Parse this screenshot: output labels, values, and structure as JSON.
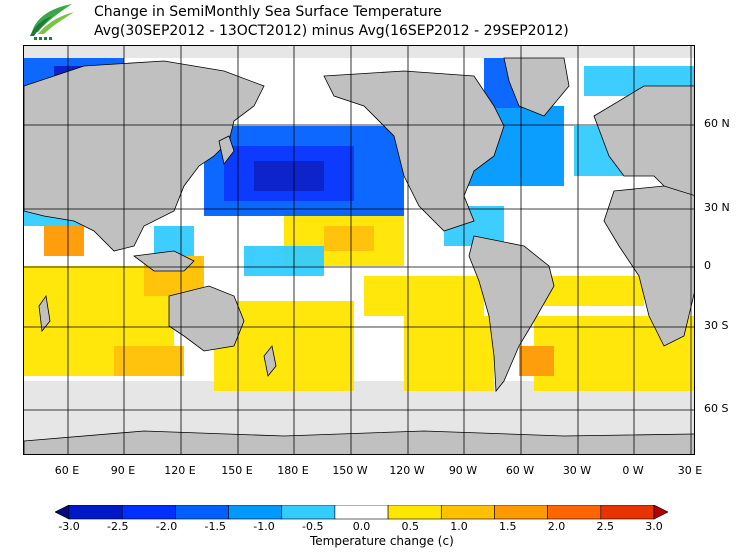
{
  "header": {
    "title": "Change in SemiMonthly Sea Surface Temperature",
    "subtitle": "Avg(30SEP2012 - 13OCT2012) minus Avg(16SEP2012 - 29SEP2012)"
  },
  "map": {
    "lat_labels": [
      {
        "text": "60 N",
        "lat": 60
      },
      {
        "text": "30 N",
        "lat": 30
      },
      {
        "text": "0",
        "lat": 0
      },
      {
        "text": "30 S",
        "lat": -30
      },
      {
        "text": "60 S",
        "lat": -60
      }
    ],
    "lon_labels": [
      {
        "text": "60 E",
        "lon": 60
      },
      {
        "text": "90 E",
        "lon": 90
      },
      {
        "text": "120 E",
        "lon": 120
      },
      {
        "text": "150 E",
        "lon": 150
      },
      {
        "text": "180 E",
        "lon": 180
      },
      {
        "text": "150 W",
        "lon": 210
      },
      {
        "text": "120 W",
        "lon": 240
      },
      {
        "text": "90 W",
        "lon": 270
      },
      {
        "text": "60 W",
        "lon": 300
      },
      {
        "text": "30 W",
        "lon": 330
      },
      {
        "text": "0 W",
        "lon": 360
      },
      {
        "text": "30 E",
        "lon": 390
      }
    ],
    "colors": {
      "land": "#c0c0c0",
      "ice": "#e6e6e6",
      "grid": "#000000"
    }
  },
  "colorbar": {
    "label": "Temperature change  (c)",
    "ticks": [
      "-3.0",
      "-2.5",
      "-2.0",
      "-1.5",
      "-1.0",
      "-0.5",
      "0.0",
      "0.5",
      "1.0",
      "1.5",
      "2.0",
      "2.5",
      "3.0"
    ],
    "colors": [
      "#000c80",
      "#0019c8",
      "#0030ff",
      "#0060ff",
      "#0099ff",
      "#33ccff",
      "#ffffff",
      "#ffe600",
      "#ffc000",
      "#ff9900",
      "#ff6600",
      "#e63300",
      "#b40000"
    ]
  }
}
